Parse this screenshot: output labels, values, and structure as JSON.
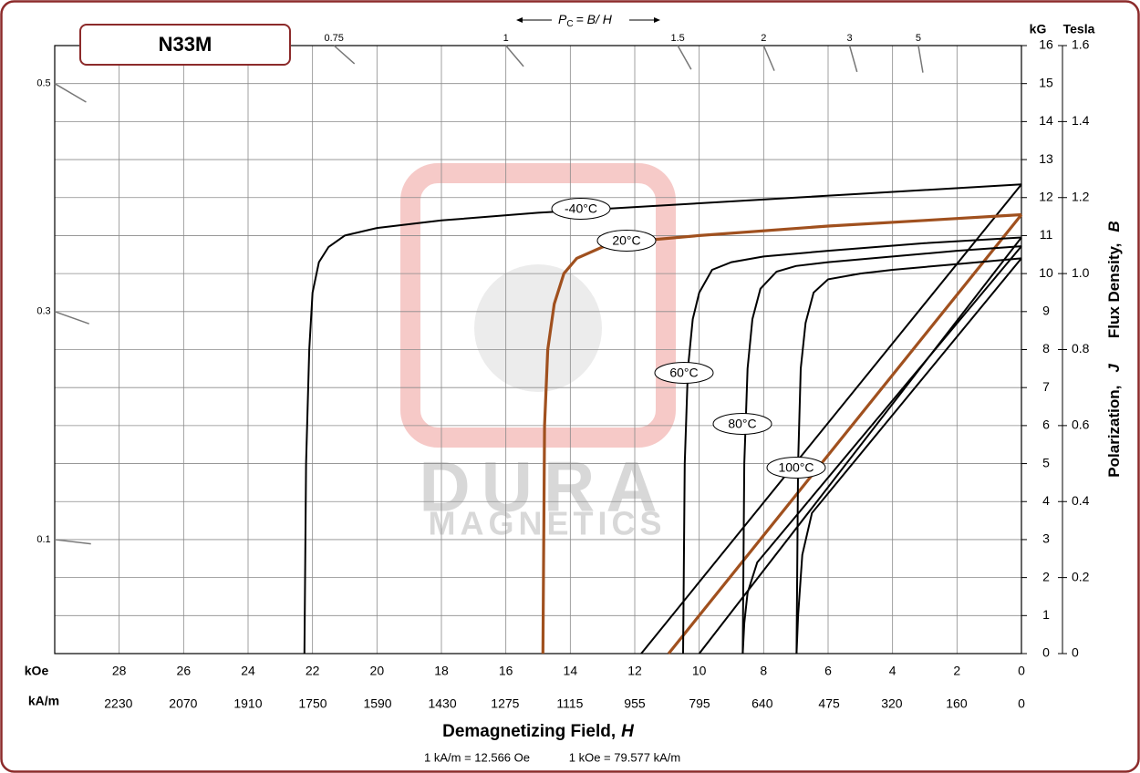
{
  "chart_data": {
    "type": "line",
    "title": "N33M",
    "pc_formula": {
      "p": "P",
      "sub": "C",
      "rest": "= B/  H"
    },
    "x_unit_label": "kOe",
    "x2_unit_label": "kA/m",
    "y_unit_label": "kG",
    "y2_unit_label": "Tesla",
    "xlabel": {
      "text": "Demagnetizing Field,",
      "symbol": "H"
    },
    "ylabel": {
      "j_text": "Polarization,",
      "j_symbol": "J",
      "b_text": "Flux Density,",
      "b_symbol": "B"
    },
    "footnotes": [
      "1 kA/m = 12.566 Oe",
      "1 kOe = 79.577 kA/m"
    ],
    "watermark": [
      "DURA",
      "MAGNETICS"
    ],
    "grid": true,
    "xlim": [
      30,
      0
    ],
    "xticks": [
      28,
      26,
      24,
      22,
      20,
      18,
      16,
      14,
      12,
      10,
      8,
      6,
      4,
      2,
      0
    ],
    "x2lim": [
      2387.31,
      0
    ],
    "x2ticks": [
      2230,
      2070,
      1910,
      1750,
      1590,
      1430,
      1275,
      1115,
      955,
      795,
      640,
      475,
      320,
      160,
      0
    ],
    "ylim": [
      0,
      16
    ],
    "yticks": [
      0,
      1,
      2,
      3,
      4,
      5,
      6,
      7,
      8,
      9,
      10,
      11,
      12,
      13,
      14,
      15,
      16
    ],
    "y2lim": [
      0,
      1.6
    ],
    "y2ticks": [
      0,
      0.2,
      0.4,
      0.6,
      0.8,
      {
        "value": 1,
        "label": "1.0"
      },
      1.2,
      1.4,
      1.6
    ],
    "pc_ticks": [
      0.75,
      1,
      1.5,
      2,
      3,
      5,
      0.5,
      0.3,
      0.1
    ],
    "series": [
      {
        "name": "-40°C",
        "color": "#000000",
        "x": [
          22.25,
          22.2,
          22.1,
          22.0,
          21.8,
          21.5,
          21,
          20,
          18,
          15,
          10,
          5,
          0
        ],
        "values": [
          0,
          5,
          8,
          9.5,
          10.3,
          10.7,
          11.0,
          11.2,
          11.4,
          11.6,
          11.85,
          12.1,
          12.35
        ],
        "b_x": [
          11.8,
          0
        ],
        "b_values": [
          0,
          12.35
        ]
      },
      {
        "name": "20°C",
        "color": "#a0501e",
        "x": [
          14.85,
          14.8,
          14.7,
          14.5,
          14.2,
          13.8,
          13,
          12,
          10,
          6,
          3,
          0
        ],
        "values": [
          0,
          6,
          8,
          9.2,
          10,
          10.4,
          10.7,
          10.85,
          11.0,
          11.25,
          11.4,
          11.55
        ],
        "b_x": [
          10.95,
          0
        ],
        "b_values": [
          0,
          11.55
        ]
      },
      {
        "name": "60°C",
        "color": "#000000",
        "x": [
          10.5,
          10.45,
          10.35,
          10.2,
          10,
          9.6,
          9,
          8,
          6,
          3,
          0
        ],
        "values": [
          0,
          5,
          7.5,
          8.8,
          9.5,
          10.1,
          10.3,
          10.45,
          10.6,
          10.8,
          10.95
        ],
        "b_x": [
          10.0,
          0
        ],
        "b_values": [
          0,
          10.95
        ]
      },
      {
        "name": "80°C",
        "color": "#000000",
        "x": [
          8.65,
          8.6,
          8.5,
          8.35,
          8.1,
          7.6,
          7,
          6,
          4,
          2,
          0
        ],
        "values": [
          0,
          5,
          7.5,
          8.8,
          9.6,
          10.05,
          10.2,
          10.3,
          10.45,
          10.6,
          10.72
        ],
        "b_x": [
          8.65,
          8.6,
          8.5,
          8.2,
          0
        ],
        "b_values": [
          0,
          0.8,
          1.6,
          2.4,
          10.72
        ]
      },
      {
        "name": "100°C",
        "color": "#000000",
        "x": [
          6.98,
          6.93,
          6.85,
          6.7,
          6.45,
          6,
          5,
          4,
          2,
          0
        ],
        "values": [
          0,
          5,
          7.5,
          8.7,
          9.5,
          9.85,
          10.0,
          10.1,
          10.25,
          10.4
        ],
        "b_x": [
          6.98,
          6.93,
          6.8,
          6.5,
          0
        ],
        "b_values": [
          0,
          1,
          2.6,
          3.7,
          10.4
        ]
      }
    ]
  }
}
